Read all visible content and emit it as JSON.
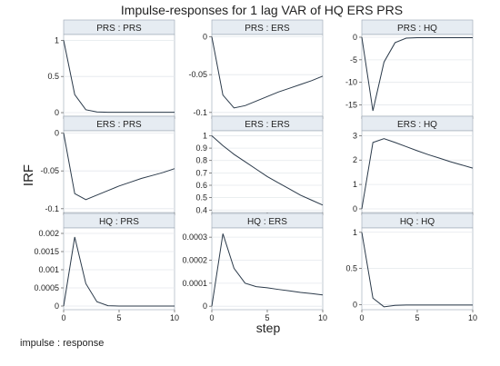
{
  "chart_data": {
    "type": "line",
    "title": "Impulse-responses for 1 lag VAR of HQ ERS PRS",
    "ylabel": "IRF",
    "xlabel": "step",
    "note": "impulse : response",
    "grid": true,
    "x": [
      0,
      1,
      2,
      3,
      4,
      5,
      6,
      7,
      8,
      9,
      10
    ],
    "x_ticks": [
      "0",
      "5",
      "10"
    ],
    "panels": [
      {
        "title": "PRS : PRS",
        "yticks": [
          "0",
          "0.5",
          "1"
        ],
        "ytick_values": [
          0,
          0.5,
          1
        ],
        "ylim": [
          -0.05,
          1.08
        ],
        "values": [
          1,
          0.25,
          0.04,
          0.01,
          0.005,
          0.005,
          0.005,
          0.005,
          0.005,
          0.005,
          0.005
        ]
      },
      {
        "title": "PRS : ERS",
        "yticks": [
          "0",
          "-0.05",
          "-0.1"
        ],
        "ytick_values": [
          0,
          -0.05,
          -0.1
        ],
        "ylim": [
          -0.105,
          0.003
        ],
        "values": [
          0,
          -0.077,
          -0.094,
          -0.091,
          -0.085,
          -0.079,
          -0.073,
          -0.068,
          -0.063,
          -0.058,
          -0.052
        ]
      },
      {
        "title": "PRS : HQ",
        "yticks": [
          "0",
          "-5",
          "-10",
          "-15"
        ],
        "ytick_values": [
          0,
          -5,
          -10,
          -15
        ],
        "ylim": [
          -17.5,
          0.6
        ],
        "values": [
          0,
          -16.3,
          -5.5,
          -1.2,
          -0.2,
          -0.1,
          -0.1,
          -0.1,
          -0.1,
          -0.1,
          -0.1
        ]
      },
      {
        "title": "ERS : PRS",
        "yticks": [
          "0",
          "-0.05",
          "-0.1"
        ],
        "ytick_values": [
          0,
          -0.05,
          -0.1
        ],
        "ylim": [
          -0.105,
          0.003
        ],
        "values": [
          0,
          -0.08,
          -0.088,
          -0.082,
          -0.076,
          -0.07,
          -0.065,
          -0.06,
          -0.056,
          -0.052,
          -0.047
        ]
      },
      {
        "title": "ERS : ERS",
        "yticks": [
          "0.4",
          "0.5",
          "0.6",
          "0.7",
          "0.8",
          "0.9",
          "1"
        ],
        "ytick_values": [
          0.4,
          0.5,
          0.6,
          0.7,
          0.8,
          0.9,
          1
        ],
        "ylim": [
          0.38,
          1.04
        ],
        "values": [
          1,
          0.92,
          0.85,
          0.79,
          0.73,
          0.67,
          0.62,
          0.57,
          0.52,
          0.48,
          0.44
        ]
      },
      {
        "title": "ERS : HQ",
        "yticks": [
          "0",
          "1",
          "2",
          "3"
        ],
        "ytick_values": [
          0,
          1,
          2,
          3
        ],
        "ylim": [
          -0.15,
          3.2
        ],
        "values": [
          0,
          2.72,
          2.88,
          2.72,
          2.55,
          2.38,
          2.22,
          2.08,
          1.93,
          1.8,
          1.67
        ]
      },
      {
        "title": "HQ : PRS",
        "yticks": [
          "0",
          "0.0005",
          "0.001",
          "0.0015",
          "0.002"
        ],
        "ytick_values": [
          0,
          0.0005,
          0.001,
          0.0015,
          0.002
        ],
        "ylim": [
          -0.0001,
          0.00215
        ],
        "values": [
          0,
          0.0019,
          0.00062,
          0.00012,
          1e-05,
          0,
          0,
          0,
          0,
          0,
          0
        ]
      },
      {
        "title": "HQ : ERS",
        "yticks": [
          "0",
          "0.0001",
          "0.0002",
          "0.0003"
        ],
        "ytick_values": [
          0,
          0.0001,
          0.0002,
          0.0003
        ],
        "ylim": [
          -1.5e-05,
          0.00034
        ],
        "values": [
          0,
          0.000315,
          0.000165,
          0.0001,
          8.5e-05,
          8e-05,
          7.3e-05,
          6.7e-05,
          6e-05,
          5.5e-05,
          4.9e-05
        ]
      },
      {
        "title": "HQ : HQ",
        "yticks": [
          "0",
          "0.5",
          "1"
        ],
        "ytick_values": [
          0,
          0.5,
          1
        ],
        "ylim": [
          -0.07,
          1.06
        ],
        "values": [
          1,
          0.09,
          -0.03,
          -0.01,
          -0.005,
          -0.005,
          -0.005,
          -0.005,
          -0.005,
          -0.005,
          -0.005
        ]
      }
    ]
  }
}
